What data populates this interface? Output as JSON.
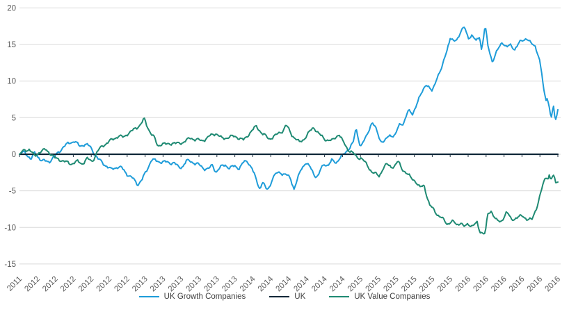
{
  "chart_data": {
    "type": "line",
    "title": "",
    "xlabel": "",
    "ylabel": "",
    "ylim": [
      -15,
      20
    ],
    "ytick_step": 5,
    "ytick_labels": [
      "20",
      "15",
      "10",
      "5",
      "0",
      "-5",
      "-10",
      "-15"
    ],
    "x_unit": "months from first tick, ticks every 2 months",
    "xtick_labels": [
      "2011",
      "2012",
      "2012",
      "2012",
      "2012",
      "2012",
      "2012",
      "2013",
      "2013",
      "2013",
      "2013",
      "2013",
      "2013",
      "2014",
      "2014",
      "2014",
      "2014",
      "2014",
      "2014",
      "2015",
      "2015",
      "2015",
      "2015",
      "2015",
      "2015",
      "2016",
      "2016",
      "2016",
      "2016",
      "2016",
      "2016"
    ],
    "grid": true,
    "grid_color": "#dadada",
    "axis_label_color": "#595959",
    "legend_position": "bottom",
    "series": [
      {
        "name": "UK Growth Companies",
        "color": "#1e9cd9",
        "points": [
          [
            0,
            0
          ],
          [
            0.6,
            0.3
          ],
          [
            1.3,
            -0.7
          ],
          [
            1.7,
            0.2
          ],
          [
            2.5,
            -0.9
          ],
          [
            3.3,
            -1.0
          ],
          [
            4.0,
            -0.2
          ],
          [
            4.8,
            0.9
          ],
          [
            5.6,
            1.6
          ],
          [
            6.1,
            1.8
          ],
          [
            6.7,
            1.1
          ],
          [
            7.3,
            1.4
          ],
          [
            7.9,
            1.0
          ],
          [
            8.7,
            -0.6
          ],
          [
            9.5,
            -1.4
          ],
          [
            10.2,
            -2.1
          ],
          [
            10.9,
            -1.7
          ],
          [
            11.4,
            -1.9
          ],
          [
            12.0,
            -2.7
          ],
          [
            12.6,
            -3.3
          ],
          [
            13.2,
            -4.1
          ],
          [
            13.7,
            -3.4
          ],
          [
            14.3,
            -1.9
          ],
          [
            14.7,
            -0.7
          ],
          [
            15.4,
            -1.0
          ],
          [
            16.0,
            -1.0
          ],
          [
            16.7,
            -1.2
          ],
          [
            17.2,
            -1.1
          ],
          [
            17.8,
            -1.9
          ],
          [
            18.2,
            -1.6
          ],
          [
            18.6,
            -0.9
          ],
          [
            19.1,
            -1.0
          ],
          [
            19.8,
            -1.3
          ],
          [
            20.5,
            -1.9
          ],
          [
            21.1,
            -2.0
          ],
          [
            21.5,
            -1.5
          ],
          [
            21.9,
            -2.4
          ],
          [
            22.4,
            -1.8
          ],
          [
            22.9,
            -1.4
          ],
          [
            23.4,
            -1.9
          ],
          [
            24.0,
            -1.6
          ],
          [
            24.5,
            -1.9
          ],
          [
            25.0,
            -1.1
          ],
          [
            25.4,
            -0.9
          ],
          [
            25.9,
            -1.9
          ],
          [
            26.5,
            -3.9
          ],
          [
            26.8,
            -4.7
          ],
          [
            27.1,
            -3.7
          ],
          [
            27.5,
            -4.9
          ],
          [
            27.9,
            -4.4
          ],
          [
            28.2,
            -3.2
          ],
          [
            28.7,
            -2.6
          ],
          [
            29.1,
            -2.5
          ],
          [
            29.7,
            -2.8
          ],
          [
            30.2,
            -3.3
          ],
          [
            30.6,
            -4.7
          ],
          [
            31.0,
            -3.4
          ],
          [
            31.4,
            -2.0
          ],
          [
            31.9,
            -1.1
          ],
          [
            32.5,
            -2.0
          ],
          [
            32.9,
            -2.9
          ],
          [
            33.3,
            -3.0
          ],
          [
            33.6,
            -2.0
          ],
          [
            34.0,
            -1.3
          ],
          [
            34.4,
            -1.5
          ],
          [
            34.8,
            -0.9
          ],
          [
            35.3,
            -1.1
          ],
          [
            35.7,
            -0.5
          ],
          [
            36.2,
            0.0
          ],
          [
            36.7,
            0.8
          ],
          [
            37.2,
            1.6
          ],
          [
            37.5,
            3.5
          ],
          [
            38.0,
            1.1
          ],
          [
            38.6,
            2.2
          ],
          [
            39.3,
            4.5
          ],
          [
            39.8,
            3.2
          ],
          [
            40.2,
            1.9
          ],
          [
            40.7,
            1.8
          ],
          [
            41.2,
            2.5
          ],
          [
            41.9,
            2.7
          ],
          [
            42.3,
            3.9
          ],
          [
            42.8,
            4.3
          ],
          [
            43.3,
            5.9
          ],
          [
            43.8,
            5.5
          ],
          [
            44.3,
            7.0
          ],
          [
            44.7,
            8.0
          ],
          [
            45.3,
            9.7
          ],
          [
            45.7,
            9.0
          ],
          [
            46.0,
            8.5
          ],
          [
            46.5,
            10.5
          ],
          [
            47.1,
            11.8
          ],
          [
            47.4,
            13.3
          ],
          [
            48.0,
            15.9
          ],
          [
            48.4,
            15.3
          ],
          [
            48.8,
            15.8
          ],
          [
            49.2,
            16.9
          ],
          [
            49.6,
            17.3
          ],
          [
            50.0,
            15.9
          ],
          [
            50.4,
            16.3
          ],
          [
            50.9,
            15.4
          ],
          [
            51.3,
            16.2
          ],
          [
            51.5,
            14.2
          ],
          [
            51.9,
            17.6
          ],
          [
            52.2,
            14.8
          ],
          [
            52.7,
            12.7
          ],
          [
            53.2,
            14.0
          ],
          [
            53.8,
            15.4
          ],
          [
            54.3,
            14.6
          ],
          [
            54.7,
            14.9
          ],
          [
            55.2,
            14.4
          ],
          [
            55.7,
            15.2
          ],
          [
            56.1,
            15.6
          ],
          [
            56.5,
            15.9
          ],
          [
            57.0,
            15.1
          ],
          [
            57.5,
            14.8
          ],
          [
            57.9,
            13.2
          ],
          [
            58.2,
            11.0
          ],
          [
            58.4,
            9.0
          ],
          [
            58.5,
            8.2
          ],
          [
            58.7,
            7.5
          ],
          [
            58.8,
            7.8
          ],
          [
            59.0,
            6.9
          ],
          [
            59.1,
            5.7
          ],
          [
            59.3,
            5.0
          ],
          [
            59.5,
            6.7
          ],
          [
            59.6,
            5.1
          ],
          [
            59.8,
            4.8
          ],
          [
            60.0,
            6.1
          ]
        ]
      },
      {
        "name": "UK",
        "color": "#0f2738",
        "points": [
          [
            0,
            0
          ],
          [
            60,
            0
          ]
        ]
      },
      {
        "name": "UK Value Companies",
        "color": "#1f8a73",
        "points": [
          [
            0,
            0
          ],
          [
            0.5,
            0.5
          ],
          [
            1.1,
            0.7
          ],
          [
            1.7,
            -0.3
          ],
          [
            2.3,
            0.4
          ],
          [
            2.9,
            0.6
          ],
          [
            3.4,
            0.2
          ],
          [
            4.0,
            -0.6
          ],
          [
            4.7,
            -0.8
          ],
          [
            5.2,
            -1.1
          ],
          [
            5.7,
            -1.3
          ],
          [
            6.4,
            -1.0
          ],
          [
            7.0,
            -1.3
          ],
          [
            7.5,
            -0.6
          ],
          [
            8.1,
            -1.0
          ],
          [
            8.7,
            0.4
          ],
          [
            9.3,
            1.2
          ],
          [
            9.8,
            1.6
          ],
          [
            10.5,
            2.1
          ],
          [
            11.0,
            2.5
          ],
          [
            11.6,
            2.3
          ],
          [
            12.0,
            2.8
          ],
          [
            12.6,
            3.2
          ],
          [
            13.1,
            3.7
          ],
          [
            13.5,
            4.1
          ],
          [
            13.9,
            4.8
          ],
          [
            14.2,
            3.9
          ],
          [
            14.6,
            3.0
          ],
          [
            15.0,
            2.3
          ],
          [
            15.4,
            1.1
          ],
          [
            15.9,
            1.5
          ],
          [
            16.4,
            1.3
          ],
          [
            17.1,
            1.6
          ],
          [
            17.6,
            1.4
          ],
          [
            18.1,
            1.6
          ],
          [
            18.6,
            1.9
          ],
          [
            19.1,
            2.2
          ],
          [
            19.8,
            2.0
          ],
          [
            20.3,
            1.8
          ],
          [
            21.1,
            2.4
          ],
          [
            21.9,
            2.9
          ],
          [
            22.6,
            2.1
          ],
          [
            23.4,
            2.4
          ],
          [
            24.2,
            2.4
          ],
          [
            25.0,
            1.9
          ],
          [
            25.7,
            3.0
          ],
          [
            26.4,
            3.8
          ],
          [
            27.1,
            2.8
          ],
          [
            27.8,
            2.1
          ],
          [
            28.6,
            2.6
          ],
          [
            29.4,
            3.3
          ],
          [
            29.7,
            4.0
          ],
          [
            30.4,
            2.6
          ],
          [
            31.2,
            1.6
          ],
          [
            31.7,
            2.1
          ],
          [
            32.5,
            3.3
          ],
          [
            32.8,
            3.7
          ],
          [
            33.5,
            2.6
          ],
          [
            34.0,
            2.1
          ],
          [
            34.8,
            1.8
          ],
          [
            35.6,
            2.8
          ],
          [
            36.0,
            1.8
          ],
          [
            36.6,
            0.7
          ],
          [
            37.1,
            0.2
          ],
          [
            37.6,
            -0.4
          ],
          [
            38.1,
            -0.5
          ],
          [
            38.6,
            -1.3
          ],
          [
            39.3,
            -2.4
          ],
          [
            39.8,
            -2.8
          ],
          [
            40.1,
            -3.0
          ],
          [
            40.5,
            -1.9
          ],
          [
            40.9,
            -1.4
          ],
          [
            41.4,
            -1.7
          ],
          [
            41.8,
            -1.6
          ],
          [
            42.2,
            -1.0
          ],
          [
            42.6,
            -1.9
          ],
          [
            42.9,
            -2.3
          ],
          [
            43.6,
            -3.2
          ],
          [
            44.1,
            -3.6
          ],
          [
            44.6,
            -4.6
          ],
          [
            45.1,
            -4.2
          ],
          [
            45.3,
            -5.2
          ],
          [
            45.7,
            -7.0
          ],
          [
            46.2,
            -7.6
          ],
          [
            46.7,
            -8.4
          ],
          [
            47.2,
            -8.9
          ],
          [
            47.7,
            -9.5
          ],
          [
            48.2,
            -9.2
          ],
          [
            48.8,
            -9.6
          ],
          [
            49.2,
            -9.3
          ],
          [
            49.5,
            -10.0
          ],
          [
            50.0,
            -9.5
          ],
          [
            50.5,
            -9.8
          ],
          [
            51.0,
            -9.4
          ],
          [
            51.3,
            -10.5
          ],
          [
            51.9,
            -10.9
          ],
          [
            52.2,
            -8.2
          ],
          [
            52.6,
            -7.7
          ],
          [
            53.1,
            -9.0
          ],
          [
            53.6,
            -9.3
          ],
          [
            54.3,
            -7.9
          ],
          [
            54.8,
            -8.9
          ],
          [
            55.4,
            -8.7
          ],
          [
            56.1,
            -8.4
          ],
          [
            56.6,
            -8.9
          ],
          [
            57.1,
            -9.0
          ],
          [
            57.7,
            -7.0
          ],
          [
            58.1,
            -5.3
          ],
          [
            58.4,
            -3.9
          ],
          [
            58.7,
            -3.0
          ],
          [
            58.9,
            -3.3
          ],
          [
            59.0,
            -2.7
          ],
          [
            59.2,
            -3.5
          ],
          [
            59.5,
            -3.0
          ],
          [
            59.8,
            -3.9
          ],
          [
            60.0,
            -3.8
          ]
        ]
      }
    ]
  },
  "legend": {
    "items": [
      {
        "label": "UK Growth Companies"
      },
      {
        "label": "UK"
      },
      {
        "label": "UK Value Companies"
      }
    ]
  }
}
